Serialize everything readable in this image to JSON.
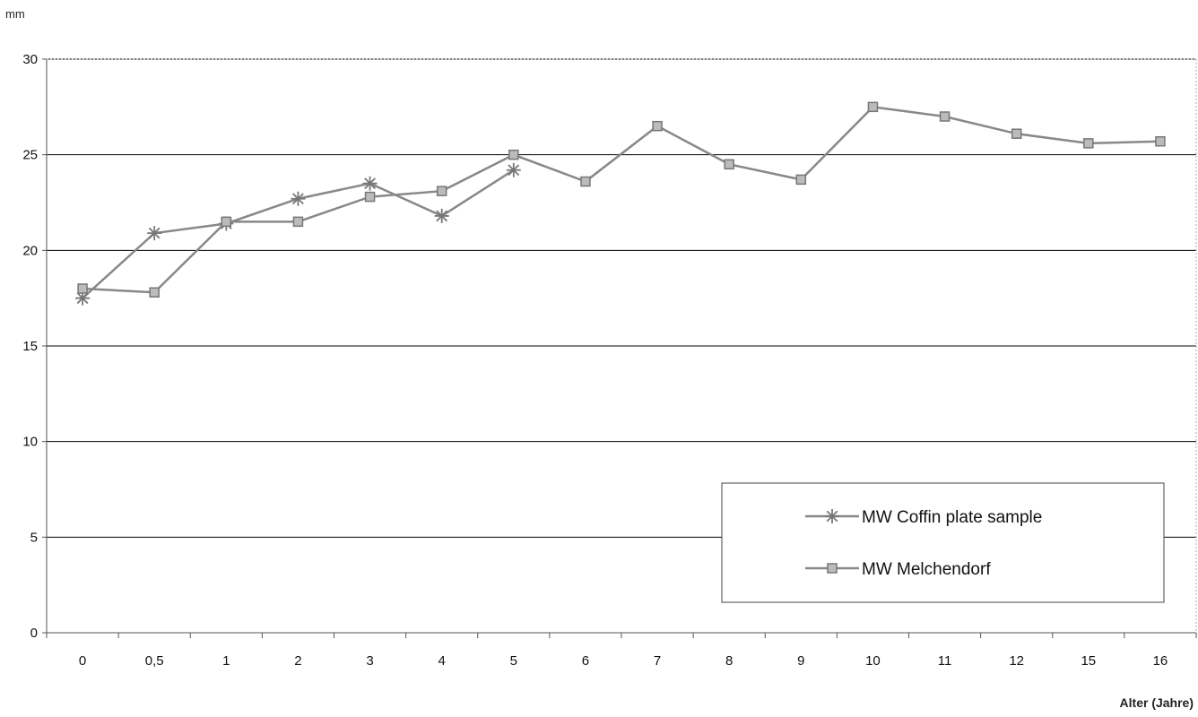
{
  "chart_data": {
    "type": "line",
    "ylabel": "mm",
    "xlabel": "Alter (Jahre)",
    "categories": [
      "0",
      "0,5",
      "1",
      "2",
      "3",
      "4",
      "5",
      "6",
      "7",
      "8",
      "9",
      "10",
      "11",
      "12",
      "15",
      "16"
    ],
    "y_ticks": [
      "0",
      "5",
      "10",
      "15",
      "20",
      "25",
      "30"
    ],
    "ylim": [
      0,
      30
    ],
    "grid": "horizontal",
    "legend_position": "bottom-right",
    "series": [
      {
        "name": "MW Coffin plate sample",
        "marker": "asterisk",
        "values": [
          17.5,
          20.9,
          21.4,
          22.7,
          23.5,
          21.8,
          24.2,
          null,
          null,
          null,
          null,
          null,
          null,
          null,
          null,
          null
        ]
      },
      {
        "name": "MW Melchendorf",
        "marker": "square",
        "values": [
          18.0,
          17.8,
          21.5,
          21.5,
          22.8,
          23.1,
          25.0,
          23.6,
          26.5,
          24.5,
          23.7,
          27.5,
          27.0,
          26.1,
          25.6,
          25.7
        ]
      }
    ],
    "colors": {
      "line": "#888888",
      "marker": "#777777",
      "grid": "#000000",
      "axis": "#555555"
    }
  }
}
